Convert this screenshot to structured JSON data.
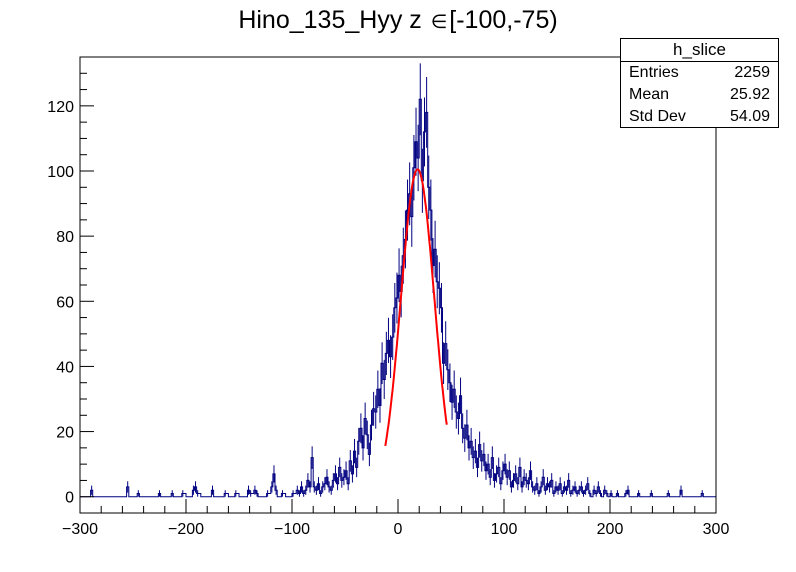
{
  "title_main": "Hino_135_Hyy z",
  "title_symbol": "∈",
  "title_range": "[-100,-75)",
  "stats": {
    "name": "h_slice",
    "rows": [
      {
        "label": "Entries",
        "value": "2259"
      },
      {
        "label": "Mean",
        "value": "25.92"
      },
      {
        "label": "Std Dev",
        "value": "54.09"
      }
    ]
  },
  "colors": {
    "histogram": "#000080",
    "fit": "#ff0000",
    "axis": "#000000"
  },
  "chart_data": {
    "type": "bar",
    "xlim": [
      -300,
      300
    ],
    "ylim": [
      -5,
      135
    ],
    "xticks": [
      -300,
      -200,
      -100,
      0,
      100,
      200,
      300
    ],
    "xtick_labels": [
      "−300",
      "−200",
      "−100",
      "0",
      "100",
      "200",
      "300"
    ],
    "yticks": [
      0,
      20,
      40,
      60,
      80,
      100,
      120
    ],
    "ytick_labels": [
      "0",
      "20",
      "40",
      "60",
      "80",
      "100",
      "120"
    ],
    "grid": false,
    "bin_width": 2,
    "histogram_points": [
      [
        -300,
        0
      ],
      [
        -292,
        0
      ],
      [
        -290,
        2
      ],
      [
        -288,
        0
      ],
      [
        -258,
        0
      ],
      [
        -256,
        3
      ],
      [
        -254,
        0
      ],
      [
        -248,
        0
      ],
      [
        -246,
        1
      ],
      [
        -244,
        0
      ],
      [
        -228,
        0
      ],
      [
        -226,
        1
      ],
      [
        -224,
        0
      ],
      [
        -216,
        0
      ],
      [
        -214,
        1
      ],
      [
        -212,
        0
      ],
      [
        -206,
        0
      ],
      [
        -204,
        1
      ],
      [
        -200,
        0
      ],
      [
        -196,
        0
      ],
      [
        -194,
        2
      ],
      [
        -192,
        3
      ],
      [
        -190,
        1
      ],
      [
        -186,
        0
      ],
      [
        -178,
        0
      ],
      [
        -176,
        2
      ],
      [
        -174,
        0
      ],
      [
        -166,
        0
      ],
      [
        -164,
        1
      ],
      [
        -160,
        0
      ],
      [
        -156,
        0
      ],
      [
        -154,
        1
      ],
      [
        -150,
        0
      ],
      [
        -144,
        0
      ],
      [
        -142,
        2
      ],
      [
        -140,
        1
      ],
      [
        -136,
        2
      ],
      [
        -134,
        1
      ],
      [
        -132,
        0
      ],
      [
        -126,
        0
      ],
      [
        -124,
        1
      ],
      [
        -120,
        3
      ],
      [
        -118,
        7
      ],
      [
        -116,
        2
      ],
      [
        -114,
        0
      ],
      [
        -110,
        1
      ],
      [
        -106,
        0
      ],
      [
        -100,
        1
      ],
      [
        -96,
        2
      ],
      [
        -94,
        1
      ],
      [
        -92,
        3
      ],
      [
        -90,
        1
      ],
      [
        -88,
        2
      ],
      [
        -86,
        5
      ],
      [
        -84,
        3
      ],
      [
        -82,
        12
      ],
      [
        -80,
        3
      ],
      [
        -78,
        2
      ],
      [
        -76,
        4
      ],
      [
        -74,
        1
      ],
      [
        -72,
        3
      ],
      [
        -70,
        4
      ],
      [
        -68,
        6
      ],
      [
        -66,
        3
      ],
      [
        -64,
        2
      ],
      [
        -62,
        5
      ],
      [
        -60,
        7
      ],
      [
        -58,
        4
      ],
      [
        -56,
        9
      ],
      [
        -54,
        5
      ],
      [
        -52,
        6
      ],
      [
        -50,
        8
      ],
      [
        -48,
        4
      ],
      [
        -46,
        11
      ],
      [
        -44,
        7
      ],
      [
        -42,
        14
      ],
      [
        -40,
        9
      ],
      [
        -38,
        17
      ],
      [
        -36,
        21
      ],
      [
        -34,
        15
      ],
      [
        -32,
        24
      ],
      [
        -30,
        19
      ],
      [
        -28,
        13
      ],
      [
        -26,
        22
      ],
      [
        -24,
        27
      ],
      [
        -22,
        26
      ],
      [
        -20,
        33
      ],
      [
        -18,
        28
      ],
      [
        -16,
        41
      ],
      [
        -14,
        36
      ],
      [
        -12,
        44
      ],
      [
        -10,
        48
      ],
      [
        -8,
        43
      ],
      [
        -6,
        49
      ],
      [
        -4,
        58
      ],
      [
        -2,
        61
      ],
      [
        0,
        68
      ],
      [
        2,
        63
      ],
      [
        4,
        74
      ],
      [
        6,
        79
      ],
      [
        8,
        88
      ],
      [
        10,
        93
      ],
      [
        12,
        86
      ],
      [
        14,
        101
      ],
      [
        16,
        109
      ],
      [
        18,
        104
      ],
      [
        20,
        122
      ],
      [
        22,
        97
      ],
      [
        24,
        112
      ],
      [
        26,
        118
      ],
      [
        28,
        95
      ],
      [
        30,
        88
      ],
      [
        32,
        71
      ],
      [
        34,
        76
      ],
      [
        36,
        66
      ],
      [
        38,
        64
      ],
      [
        40,
        58
      ],
      [
        42,
        41
      ],
      [
        44,
        47
      ],
      [
        46,
        39
      ],
      [
        48,
        35
      ],
      [
        50,
        29
      ],
      [
        52,
        33
      ],
      [
        54,
        26
      ],
      [
        56,
        24
      ],
      [
        58,
        31
      ],
      [
        60,
        21
      ],
      [
        62,
        18
      ],
      [
        64,
        22
      ],
      [
        66,
        15
      ],
      [
        68,
        17
      ],
      [
        70,
        12
      ],
      [
        72,
        14
      ],
      [
        74,
        9
      ],
      [
        76,
        16
      ],
      [
        78,
        11
      ],
      [
        80,
        13
      ],
      [
        82,
        8
      ],
      [
        84,
        10
      ],
      [
        86,
        6
      ],
      [
        88,
        12
      ],
      [
        90,
        5
      ],
      [
        92,
        7
      ],
      [
        94,
        9
      ],
      [
        96,
        4
      ],
      [
        98,
        8
      ],
      [
        100,
        10
      ],
      [
        102,
        6
      ],
      [
        104,
        8
      ],
      [
        106,
        3
      ],
      [
        108,
        5
      ],
      [
        110,
        7
      ],
      [
        112,
        4
      ],
      [
        114,
        9
      ],
      [
        116,
        3
      ],
      [
        118,
        6
      ],
      [
        120,
        5
      ],
      [
        122,
        4
      ],
      [
        124,
        8
      ],
      [
        126,
        3
      ],
      [
        128,
        2
      ],
      [
        130,
        4
      ],
      [
        132,
        1
      ],
      [
        134,
        3
      ],
      [
        136,
        6
      ],
      [
        138,
        2
      ],
      [
        140,
        4
      ],
      [
        142,
        3
      ],
      [
        144,
        5
      ],
      [
        146,
        1
      ],
      [
        148,
        3
      ],
      [
        150,
        2
      ],
      [
        152,
        4
      ],
      [
        154,
        1
      ],
      [
        156,
        3
      ],
      [
        158,
        2
      ],
      [
        160,
        5
      ],
      [
        162,
        1
      ],
      [
        164,
        2
      ],
      [
        166,
        3
      ],
      [
        168,
        1
      ],
      [
        170,
        2
      ],
      [
        172,
        3
      ],
      [
        174,
        1
      ],
      [
        176,
        2
      ],
      [
        178,
        4
      ],
      [
        180,
        1
      ],
      [
        182,
        0
      ],
      [
        184,
        2
      ],
      [
        186,
        1
      ],
      [
        188,
        3
      ],
      [
        190,
        1
      ],
      [
        192,
        0
      ],
      [
        194,
        2
      ],
      [
        196,
        1
      ],
      [
        198,
        0
      ],
      [
        200,
        1
      ],
      [
        202,
        0
      ],
      [
        206,
        1
      ],
      [
        208,
        0
      ],
      [
        214,
        1
      ],
      [
        216,
        2
      ],
      [
        218,
        0
      ],
      [
        224,
        0
      ],
      [
        226,
        1
      ],
      [
        228,
        0
      ],
      [
        236,
        0
      ],
      [
        238,
        1
      ],
      [
        240,
        0
      ],
      [
        252,
        0
      ],
      [
        254,
        1
      ],
      [
        256,
        0
      ],
      [
        264,
        0
      ],
      [
        266,
        2
      ],
      [
        268,
        0
      ],
      [
        284,
        0
      ],
      [
        286,
        1
      ],
      [
        288,
        0
      ],
      [
        300,
        0
      ]
    ],
    "fit": {
      "function": "gaus",
      "constant": 100.5,
      "mean": 18.5,
      "sigma": 15.8,
      "x_range": [
        -12,
        46
      ]
    }
  }
}
